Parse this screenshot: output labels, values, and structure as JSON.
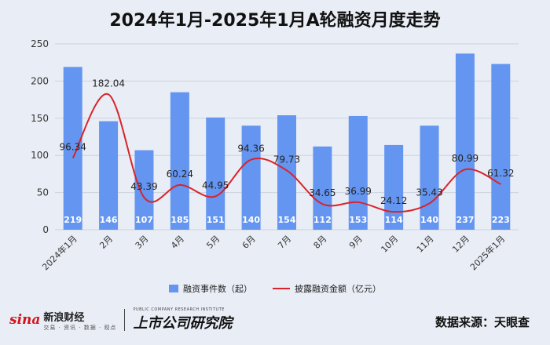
{
  "chart_data": {
    "type": "bar",
    "title": "2024年1月-2025年1月A轮融资月度走势",
    "categories": [
      "2024年1月",
      "2月",
      "3月",
      "4月",
      "5月",
      "6月",
      "7月",
      "8月",
      "9月",
      "10月",
      "11月",
      "12月",
      "2025年1月"
    ],
    "series": [
      {
        "name": "融资事件数（起）",
        "type": "bar",
        "values": [
          219,
          146,
          107,
          185,
          151,
          140,
          154,
          112,
          153,
          114,
          140,
          237,
          223
        ]
      },
      {
        "name": "披露融资金额（亿元）",
        "type": "line",
        "values": [
          96.34,
          182.04,
          43.39,
          60.24,
          44.95,
          94.36,
          79.73,
          34.65,
          36.99,
          24.12,
          35.43,
          80.99,
          61.32
        ]
      }
    ],
    "ylim": [
      0,
      250
    ],
    "yticks": [
      0,
      50,
      100,
      150,
      200,
      250
    ],
    "grid": true,
    "legend_position": "bottom",
    "colors": {
      "bar": "#6495f0",
      "line": "#d9232a"
    }
  },
  "footer": {
    "sina_mark": "sina",
    "sina_text": "新浪财经",
    "sina_sub": "交易 · 资讯 · 数据 · 观点",
    "company_logo": "上市公司研究院",
    "company_logo_sub": "PUBLIC COMPANY RESEARCH INSTITUTE",
    "source": "数据来源：天眼查"
  }
}
